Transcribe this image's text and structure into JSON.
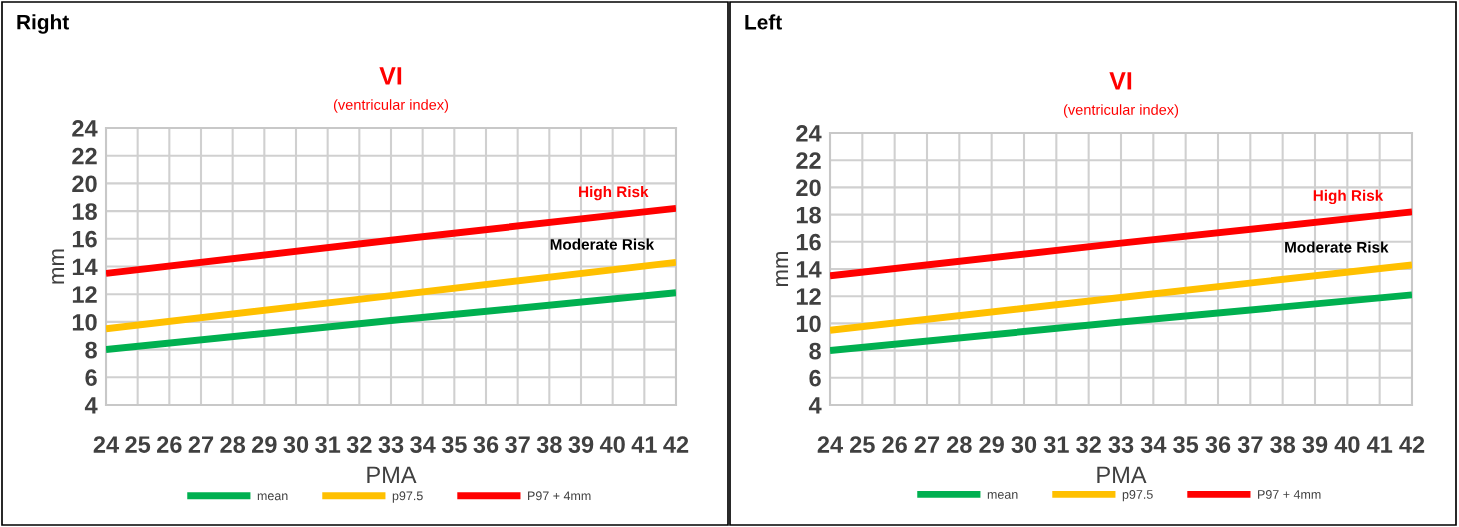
{
  "chart_data": [
    {
      "type": "line",
      "title": "VI",
      "subtitle": "(ventricular index)",
      "xlabel": "PMA",
      "ylabel": "mm",
      "annotations": [
        "Right",
        "High Risk",
        "Moderate Risk"
      ],
      "series": [
        {
          "name": "mean",
          "color": "#00b050",
          "x": [
            24,
            33,
            42
          ],
          "values": [
            8.0,
            10.1,
            12.1
          ]
        },
        {
          "name": "p97.5",
          "color": "#ffc000",
          "x": [
            24,
            33,
            42
          ],
          "values": [
            9.5,
            11.9,
            14.3
          ]
        },
        {
          "name": "P97 + 4mm",
          "color": "#ff0000",
          "x": [
            24,
            33,
            42
          ],
          "values": [
            13.5,
            15.9,
            18.2
          ]
        }
      ],
      "xlim": [
        24,
        42
      ],
      "xticks": [
        24,
        25,
        26,
        27,
        28,
        29,
        30,
        31,
        32,
        33,
        34,
        35,
        36,
        37,
        38,
        39,
        40,
        41,
        42
      ],
      "ylim": [
        4,
        24
      ],
      "yticks": [
        4,
        6,
        8,
        10,
        12,
        14,
        16,
        18,
        20,
        22,
        24
      ],
      "grid": true,
      "legend": "bottom",
      "marker": "none",
      "line_style": "solid"
    },
    {
      "type": "line",
      "title": "VI",
      "subtitle": "(ventricular index)",
      "xlabel": "PMA",
      "ylabel": "mm",
      "annotations": [
        "Left",
        "High Risk",
        "Moderate Risk"
      ],
      "series": [
        {
          "name": "mean",
          "color": "#00b050",
          "x": [
            24,
            33,
            42
          ],
          "values": [
            8.0,
            10.1,
            12.1
          ]
        },
        {
          "name": "p97.5",
          "color": "#ffc000",
          "x": [
            24,
            33,
            42
          ],
          "values": [
            9.5,
            11.9,
            14.3
          ]
        },
        {
          "name": "P97 + 4mm",
          "color": "#ff0000",
          "x": [
            24,
            33,
            42
          ],
          "values": [
            13.5,
            15.9,
            18.2
          ]
        }
      ],
      "xlim": [
        24,
        42
      ],
      "xticks": [
        24,
        25,
        26,
        27,
        28,
        29,
        30,
        31,
        32,
        33,
        34,
        35,
        36,
        37,
        38,
        39,
        40,
        41,
        42
      ],
      "ylim": [
        4,
        24
      ],
      "yticks": [
        4,
        6,
        8,
        10,
        12,
        14,
        16,
        18,
        20,
        22,
        24
      ],
      "grid": true,
      "legend": "bottom",
      "marker": "none",
      "line_style": "solid"
    }
  ]
}
